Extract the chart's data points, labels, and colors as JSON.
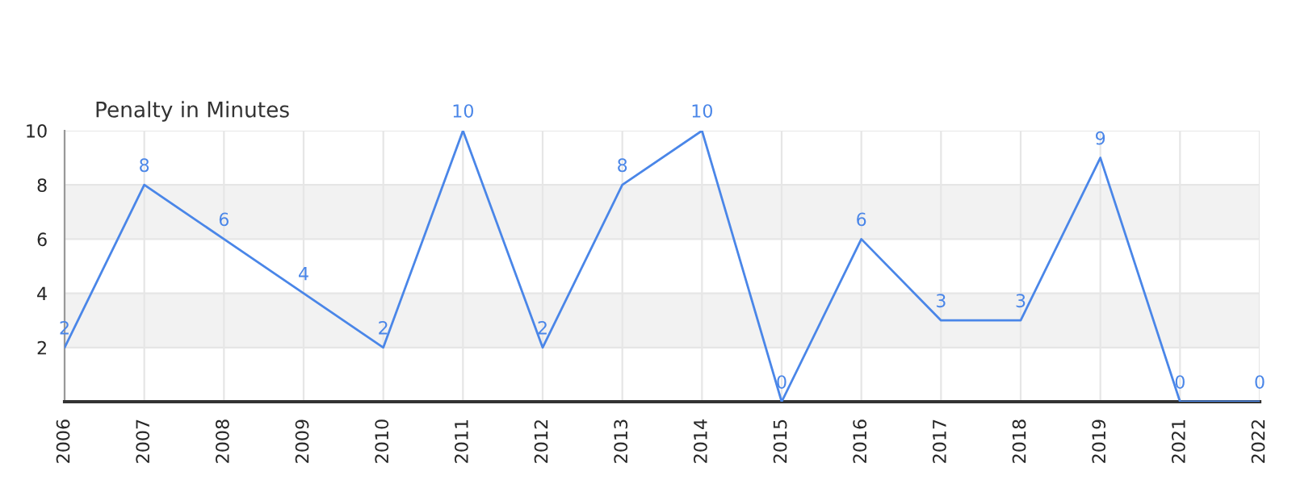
{
  "chart_data": {
    "type": "line",
    "title": "Penalty in Minutes",
    "categories": [
      "2006",
      "2007",
      "2008",
      "2009",
      "2010",
      "2011",
      "2012",
      "2013",
      "2014",
      "2015",
      "2016",
      "2017",
      "2018",
      "2019",
      "2021",
      "2022"
    ],
    "series": [
      {
        "color": "#4a86e8",
        "values": [
          2,
          8,
          6,
          4,
          2,
          10,
          2,
          8,
          10,
          0,
          6,
          3,
          3,
          9,
          0,
          0
        ]
      }
    ],
    "ylim": [
      0,
      10
    ],
    "yticks": [
      2,
      4,
      6,
      8,
      10
    ],
    "bands": [
      {
        "axis": "y",
        "from": 2,
        "to": 4,
        "color": "#f2f2f2"
      },
      {
        "axis": "y",
        "from": 6,
        "to": 8,
        "color": "#f2f2f2"
      }
    ],
    "grid": true,
    "data_labels": true,
    "marker": "none",
    "line_style": "solid"
  }
}
